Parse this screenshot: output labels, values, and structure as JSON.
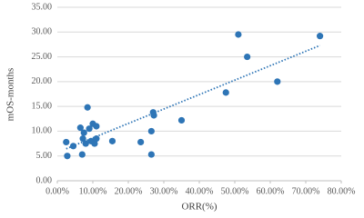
{
  "chart_data": {
    "type": "scatter",
    "x_label": "ORR(%)",
    "y_label": "mOS-months",
    "x": [
      2.5,
      2.8,
      4.5,
      6.5,
      7,
      7.2,
      7.5,
      8,
      8.5,
      9,
      9.5,
      10,
      10.5,
      11,
      11,
      15.5,
      23.5,
      26.5,
      26.5,
      27,
      27.2,
      35,
      47.5,
      51,
      53.5,
      62,
      74
    ],
    "values": [
      7.8,
      5.0,
      7.0,
      10.7,
      5.3,
      8.5,
      9.7,
      7.5,
      14.8,
      10.5,
      8.0,
      11.5,
      7.5,
      11.0,
      8.5,
      8.0,
      7.8,
      10.0,
      5.3,
      13.8,
      13.2,
      12.2,
      17.8,
      29.5,
      25.0,
      20.0,
      29.2
    ],
    "color": "#2e75b6",
    "trendline": true,
    "grid": true,
    "xlim": [
      0,
      80
    ],
    "xticks": [
      {
        "value": 0,
        "label": "0.00%"
      },
      {
        "value": 10,
        "label": "10.00%"
      },
      {
        "value": 20,
        "label": "20.00%"
      },
      {
        "value": 30,
        "label": "30.00%"
      },
      {
        "value": 40,
        "label": "40.00%"
      },
      {
        "value": 50,
        "label": "50.00%"
      },
      {
        "value": 60,
        "label": "60.00%"
      },
      {
        "value": 70,
        "label": "70.00%"
      },
      {
        "value": 80,
        "label": "80.00%"
      }
    ],
    "ylim": [
      0,
      35
    ],
    "yticks": [
      {
        "value": 0,
        "label": "0.00"
      },
      {
        "value": 5,
        "label": "5.00"
      },
      {
        "value": 10,
        "label": "10.00"
      },
      {
        "value": 15,
        "label": "15.00"
      },
      {
        "value": 20,
        "label": "20.00"
      },
      {
        "value": 25,
        "label": "25.00"
      },
      {
        "value": 30,
        "label": "30.00"
      },
      {
        "value": 35,
        "label": "35.00"
      }
    ]
  }
}
